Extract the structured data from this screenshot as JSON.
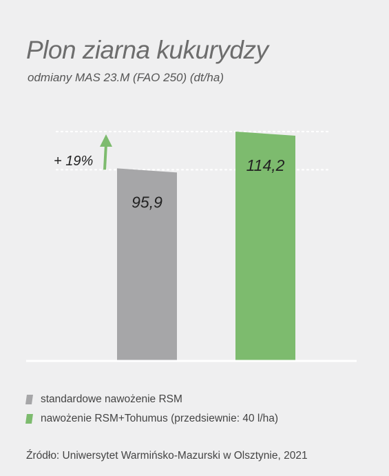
{
  "title": "Plon ziarna kukurydzy",
  "subtitle": "odmiany MAS 23.M (FAO 250) (dt/ha)",
  "chart_data": {
    "type": "bar",
    "categories": [
      "standardowe nawożenie RSM",
      "nawożenie RSM+Tohumus (przedsiewnie: 40 l/ha)"
    ],
    "values": [
      95.9,
      114.2
    ],
    "value_labels": [
      "95,9",
      "114,2"
    ],
    "colors": [
      "#a6a6a8",
      "#7dbb6e"
    ],
    "increase_label": "+ 19%",
    "arrow_color": "#7dbb6e",
    "legend_position": "bottom-left",
    "grid": false
  },
  "legend": [
    {
      "label": "standardowe nawożenie RSM",
      "color": "#a6a6a8"
    },
    {
      "label": "nawożenie RSM+Tohumus (przedsiewnie: 40 l/ha)",
      "color": "#7dbb6e"
    }
  ],
  "source": "Źródło: Uniwersytet Warmińsko-Mazurski w Olsztynie, 2021"
}
